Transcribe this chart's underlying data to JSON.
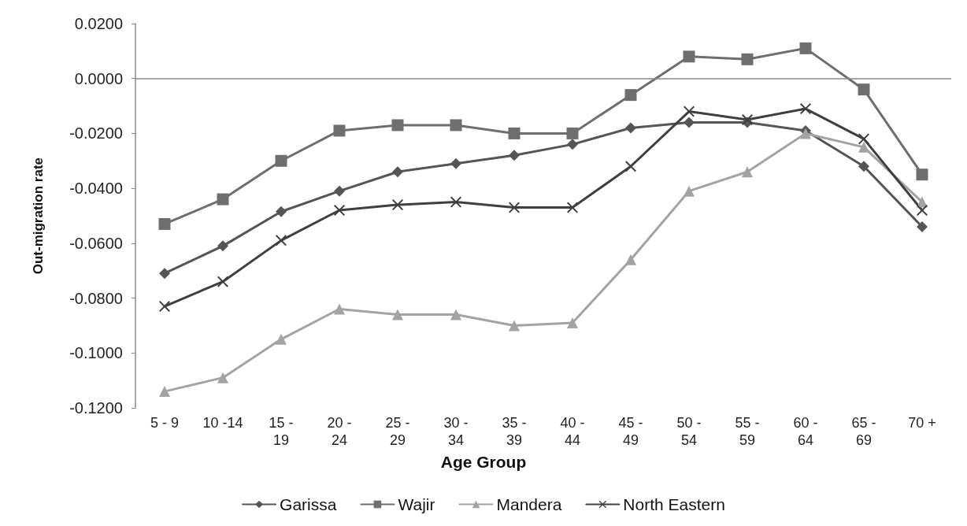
{
  "chart_data": {
    "type": "line",
    "xlabel": "Age Group",
    "ylabel": "Out-migration rate",
    "categories": [
      "5 - 9",
      "10 -14",
      "15 -\n19",
      "20 -\n24",
      "25 -\n29",
      "30 -\n34",
      "35 -\n39",
      "40 -\n44",
      "45 -\n49",
      "50 -\n54",
      "55 -\n59",
      "60 -\n64",
      "65 -\n69",
      "70 +"
    ],
    "series": [
      {
        "name": "Garissa",
        "color": "#555555",
        "marker": "diamond",
        "values": [
          -0.071,
          -0.061,
          -0.0485,
          -0.041,
          -0.034,
          -0.031,
          -0.028,
          -0.024,
          -0.018,
          -0.016,
          -0.016,
          -0.019,
          -0.032,
          -0.054
        ]
      },
      {
        "name": "Wajir",
        "color": "#6e6e6e",
        "marker": "square",
        "values": [
          -0.053,
          -0.044,
          -0.03,
          -0.019,
          -0.017,
          -0.017,
          -0.02,
          -0.02,
          -0.006,
          0.008,
          0.007,
          0.011,
          -0.004,
          -0.035
        ]
      },
      {
        "name": "Mandera",
        "color": "#a3a3a3",
        "marker": "triangle",
        "values": [
          -0.114,
          -0.109,
          -0.095,
          -0.084,
          -0.086,
          -0.086,
          -0.09,
          -0.089,
          -0.066,
          -0.041,
          -0.034,
          -0.02,
          -0.025,
          -0.045
        ]
      },
      {
        "name": "North Eastern",
        "color": "#3f3f3f",
        "marker": "cross",
        "values": [
          -0.083,
          -0.074,
          -0.059,
          -0.048,
          -0.046,
          -0.045,
          -0.047,
          -0.047,
          -0.032,
          -0.012,
          -0.015,
          -0.011,
          -0.022,
          -0.048
        ]
      }
    ],
    "ylim": [
      -0.12,
      0.02
    ],
    "yticks": [
      {
        "value": -0.12,
        "label": "-0.1200"
      },
      {
        "value": -0.1,
        "label": "-0.1000"
      },
      {
        "value": -0.08,
        "label": "-0.0800"
      },
      {
        "value": -0.06,
        "label": "-0.0600"
      },
      {
        "value": -0.04,
        "label": "-0.0400"
      },
      {
        "value": -0.02,
        "label": "-0.0200"
      },
      {
        "value": 0,
        "label": "0.0000"
      },
      {
        "value": 0.02,
        "label": "0.0200"
      }
    ],
    "ref_lines": [
      {
        "axis": "y",
        "value": 0,
        "color": "#888888",
        "line_style": "solid"
      }
    ],
    "grid": false,
    "legend": "bottom",
    "line_style": "solid"
  }
}
